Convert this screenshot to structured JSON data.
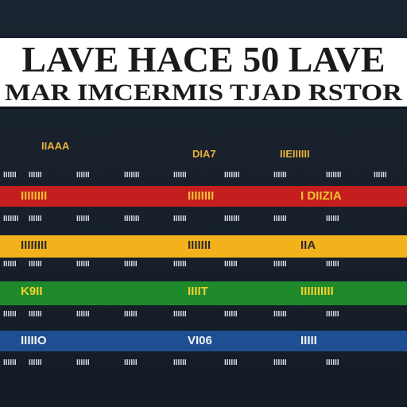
{
  "title": {
    "line1": "LAVE HACE 50 LAVE",
    "line2": "MAR IMCERMIS TJAD RSTOR"
  },
  "header": {
    "col_a": "IIAAA",
    "col_b": "DIA7",
    "col_c": "IIEIIIIII"
  },
  "rows": [
    {
      "kind": "plain",
      "cells": [
        "IIIIII",
        "IIIIII",
        "IIIIII",
        "IIIIIII",
        "IIIIII",
        "IIIIIII",
        "IIIIII",
        "IIIIIII",
        "IIIIII"
      ]
    },
    {
      "kind": "red",
      "cells": [
        "IIIIIIII",
        "IIIIIIII",
        "I DIIZIA"
      ]
    },
    {
      "kind": "plain",
      "cells": [
        "IIIIIII",
        "IIIIII",
        "IIIIII",
        "IIIIIII",
        "IIIIII",
        "IIIIIII",
        "IIIIII",
        "IIIIII"
      ]
    },
    {
      "kind": "yellow",
      "cells": [
        "IIIIIIII",
        "IIIIIII",
        "IIA"
      ]
    },
    {
      "kind": "plain",
      "cells": [
        "IIIIII",
        "IIIIII",
        "IIIIII",
        "IIIIII",
        "IIIIII",
        "IIIIII",
        "IIIIII",
        "IIIIII"
      ]
    },
    {
      "kind": "green",
      "cells": [
        "K9II",
        "IIIIT",
        "IIIIIIIIII"
      ]
    },
    {
      "kind": "plain",
      "cells": [
        "IIIIII",
        "IIIIII",
        "IIIIII",
        "IIIIII",
        "IIIIII",
        "IIIIII",
        "IIIIII",
        "IIIIII"
      ]
    },
    {
      "kind": "blue",
      "cells": [
        "IIIIIO",
        "VI06",
        "IIIII"
      ]
    },
    {
      "kind": "plain",
      "cells": [
        "IIIIII",
        "IIIIII",
        "IIIIII",
        "IIIIII",
        "IIIIII",
        "IIIIII",
        "IIIIII",
        "IIIIII"
      ]
    }
  ]
}
